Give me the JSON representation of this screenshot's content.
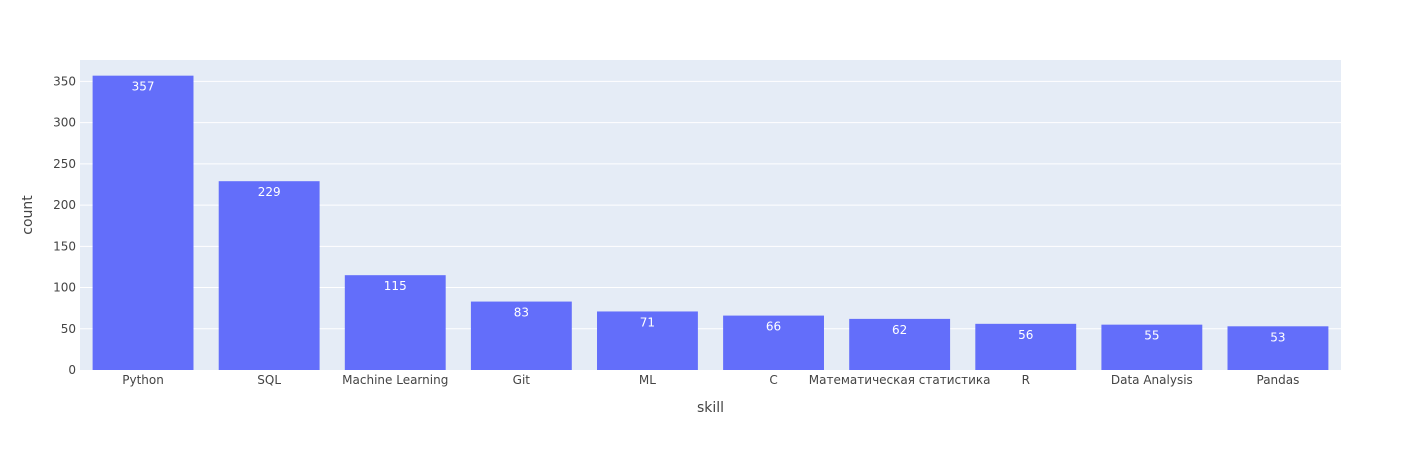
{
  "chart_data": {
    "type": "bar",
    "categories": [
      "Python",
      "SQL",
      "Machine Learning",
      "Git",
      "ML",
      "C",
      "Математическая статистика",
      "R",
      "Data Analysis",
      "Pandas"
    ],
    "values": [
      357,
      229,
      115,
      83,
      71,
      66,
      62,
      56,
      55,
      53
    ],
    "xlabel": "skill",
    "ylabel": "count",
    "ylim": [
      0,
      376
    ],
    "yticks": [
      0,
      50,
      100,
      150,
      200,
      250,
      300,
      350
    ],
    "grid": true,
    "legend": "none",
    "colors": {
      "bar": "#636efa",
      "plot_background": "#e5ecf6",
      "gridline": "#ffffff",
      "text": "#444444",
      "bar_label": "#ffffff"
    }
  }
}
